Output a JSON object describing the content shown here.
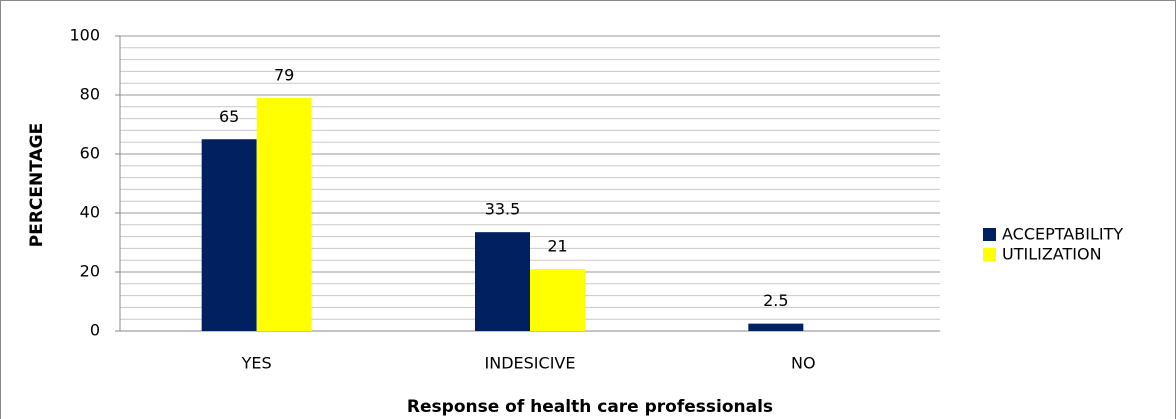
{
  "chart_data": {
    "type": "bar",
    "categories": [
      "YES",
      "INDESICIVE",
      "NO"
    ],
    "series": [
      {
        "name": "ACCEPTABILITY",
        "color": "#002060",
        "values": [
          65,
          33.5,
          2.5
        ]
      },
      {
        "name": "UTILIZATION",
        "color": "#ffff00",
        "values": [
          79,
          21,
          null
        ]
      }
    ],
    "x_label": "Response of health care professionals",
    "y_label": "PERCENTAGE",
    "ylim": [
      0,
      100
    ],
    "yticks": [
      0,
      20,
      40,
      60,
      80,
      100
    ],
    "grid": true,
    "minor_grid_step": 4,
    "legend": "right"
  }
}
